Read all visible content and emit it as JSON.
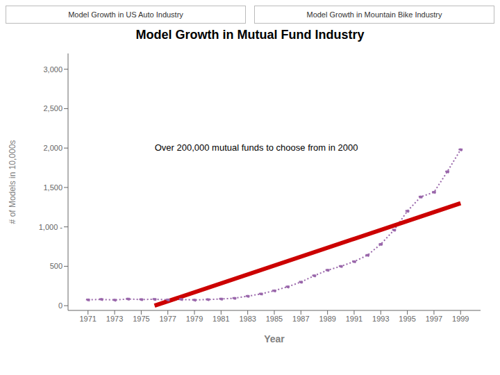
{
  "chart_data": {
    "type": "line",
    "title": "Model Growth in Mutual Fund Industry",
    "xlabel": "Year",
    "ylabel": "# of Models in 10,000s",
    "annotations": [
      "Over 200,000 mutual funds to choose from in 2000",
      "Model Growth in US Auto Industry",
      "Model Growth in Mountain Bike Industry"
    ],
    "xlim": [
      1969.5,
      2000.5
    ],
    "xticks": [
      1971,
      1973,
      1975,
      1977,
      1979,
      1981,
      1983,
      1985,
      1987,
      1989,
      1991,
      1993,
      1995,
      1997,
      1999
    ],
    "ylim": [
      -60,
      3200
    ],
    "yticks": [
      0,
      500,
      {
        "value": 1000,
        "label": "1,000 -"
      },
      {
        "value": 1500,
        "label": "1,500"
      },
      {
        "value": 2000,
        "label": "2,000"
      },
      {
        "value": 2500,
        "label": "2,500"
      },
      {
        "value": 3000,
        "label": "3,000"
      }
    ],
    "grid": false,
    "series": [
      {
        "color": "#9966aa",
        "line_style": "dotted",
        "marker": "dot",
        "x": [
          1971,
          1972,
          1973,
          1974,
          1975,
          1976,
          1977,
          1978,
          1979,
          1980,
          1981,
          1982,
          1983,
          1984,
          1985,
          1986,
          1987,
          1988,
          1989,
          1990,
          1991,
          1992,
          1993,
          1994,
          1995,
          1996,
          1997,
          1998,
          1999
        ],
        "values": [
          75,
          80,
          72,
          85,
          78,
          82,
          75,
          80,
          72,
          78,
          85,
          95,
          120,
          150,
          190,
          240,
          300,
          380,
          450,
          500,
          560,
          640,
          780,
          960,
          1200,
          1380,
          1440,
          1700,
          1980
        ]
      },
      {
        "color": "#cc0000",
        "line_style": "solid",
        "marker": "none",
        "x": [
          1976,
          1999
        ],
        "values": [
          0,
          1300
        ]
      }
    ]
  }
}
